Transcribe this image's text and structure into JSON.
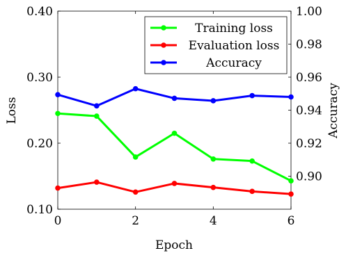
{
  "chart_data": {
    "type": "line",
    "title": "",
    "xlabel": "Epoch",
    "ylabel_left": "Loss",
    "ylabel_right": "Accuracy",
    "xlim": [
      0,
      6
    ],
    "ylim_left": [
      0.1,
      0.4
    ],
    "ylim_right": [
      0.88,
      1.0
    ],
    "x_ticks": [
      0,
      2,
      4,
      6
    ],
    "x_tick_labels": [
      "0",
      "2",
      "4",
      "6"
    ],
    "y_left_ticks": [
      0.1,
      0.2,
      0.3,
      0.4
    ],
    "y_left_tick_labels": [
      "0.10",
      "0.20",
      "0.30",
      "0.40"
    ],
    "y_right_ticks": [
      0.9,
      0.92,
      0.94,
      0.96,
      0.98,
      1.0
    ],
    "y_right_tick_labels": [
      "0.90",
      "0.92",
      "0.94",
      "0.96",
      "0.98",
      "1.00"
    ],
    "grid": false,
    "legend_position": "top-right",
    "x": [
      0,
      1,
      2,
      3,
      4,
      5,
      6
    ],
    "series": [
      {
        "name": "Training loss",
        "axis": "left",
        "color": "#00ff00",
        "values": [
          0.245,
          0.241,
          0.179,
          0.215,
          0.176,
          0.173,
          0.143
        ]
      },
      {
        "name": "Evaluation loss",
        "axis": "left",
        "color": "#ff0000",
        "values": [
          0.132,
          0.141,
          0.126,
          0.139,
          0.133,
          0.127,
          0.123
        ]
      },
      {
        "name": "Accuracy",
        "axis": "right",
        "color": "#0000ff",
        "values": [
          0.9494,
          0.9426,
          0.953,
          0.9472,
          0.9457,
          0.9488,
          0.948
        ]
      }
    ]
  }
}
